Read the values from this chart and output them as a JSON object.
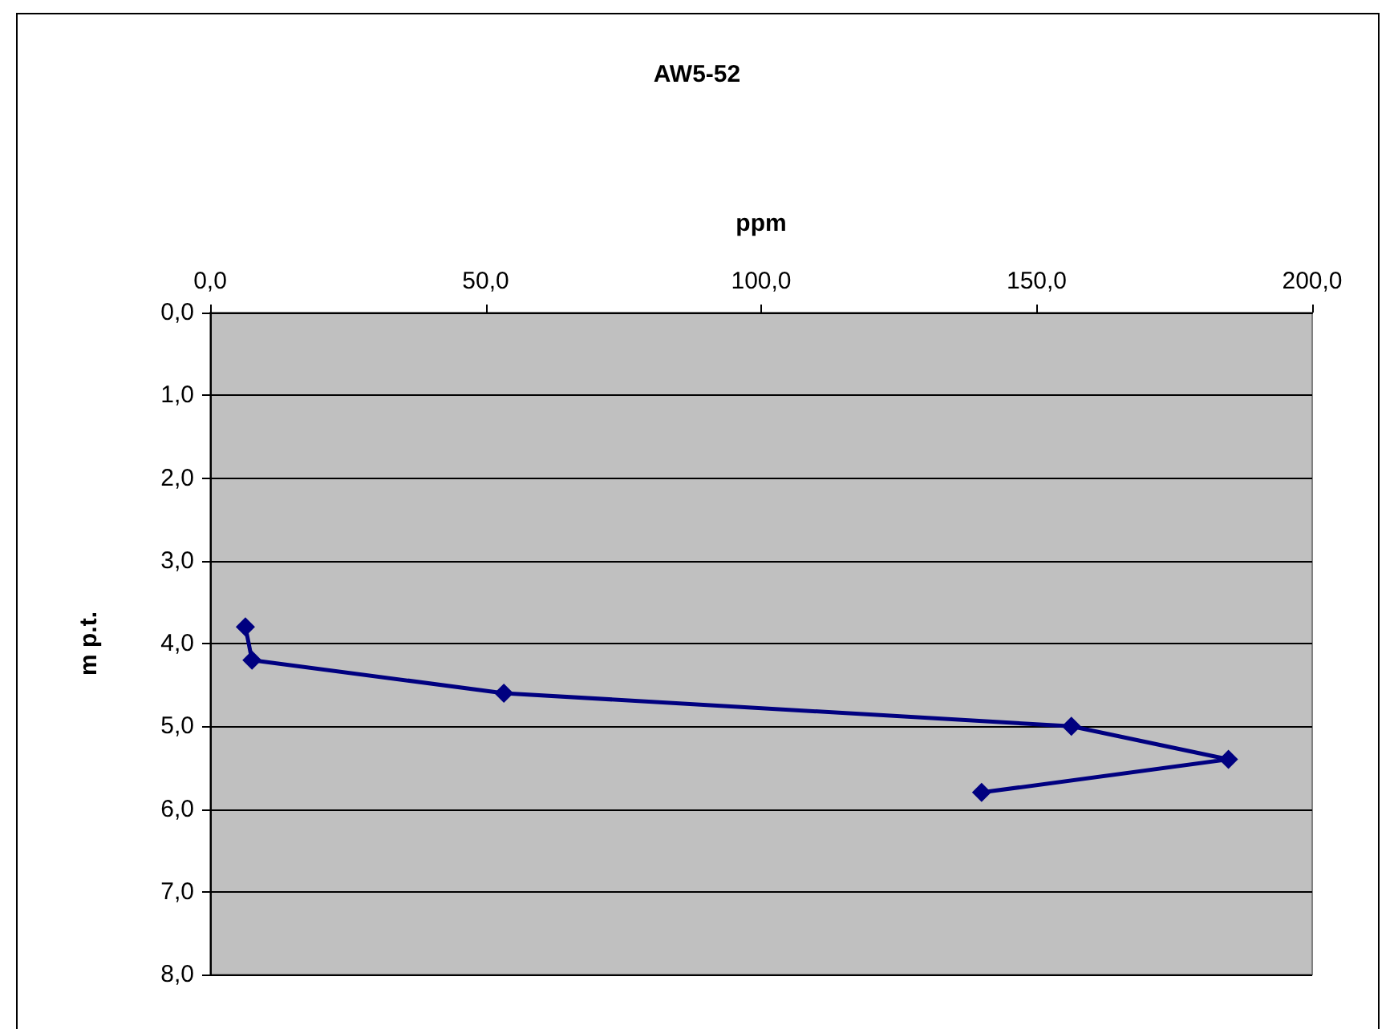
{
  "chart_data": {
    "type": "line",
    "title": "AW5-52",
    "xlabel": "ppm",
    "ylabel": "m p.t.",
    "x": [
      6.4,
      7.6,
      53.3,
      156.3,
      184.8,
      140.0
    ],
    "series": [
      {
        "color": "#000080",
        "values": [
          3.8,
          4.2,
          4.6,
          5.0,
          5.4,
          5.8
        ]
      }
    ],
    "xlim": [
      0,
      200
    ],
    "xticks": [
      {
        "value": 0,
        "label": "0,0"
      },
      {
        "value": 50,
        "label": "50,0"
      },
      {
        "value": 100,
        "label": "100,0"
      },
      {
        "value": 150,
        "label": "150,0"
      },
      {
        "value": 200,
        "label": "200,0"
      }
    ],
    "ylim": [
      8,
      0
    ],
    "yticks": [
      {
        "value": 0,
        "label": "0,0"
      },
      {
        "value": 1,
        "label": "1,0"
      },
      {
        "value": 2,
        "label": "2,0"
      },
      {
        "value": 3,
        "label": "3,0"
      },
      {
        "value": 4,
        "label": "4,0"
      },
      {
        "value": 5,
        "label": "5,0"
      },
      {
        "value": 6,
        "label": "6,0"
      },
      {
        "value": 7,
        "label": "7,0"
      },
      {
        "value": 8,
        "label": "8,0"
      }
    ],
    "grid": "y",
    "marker": "diamond",
    "line_style": "solid"
  }
}
